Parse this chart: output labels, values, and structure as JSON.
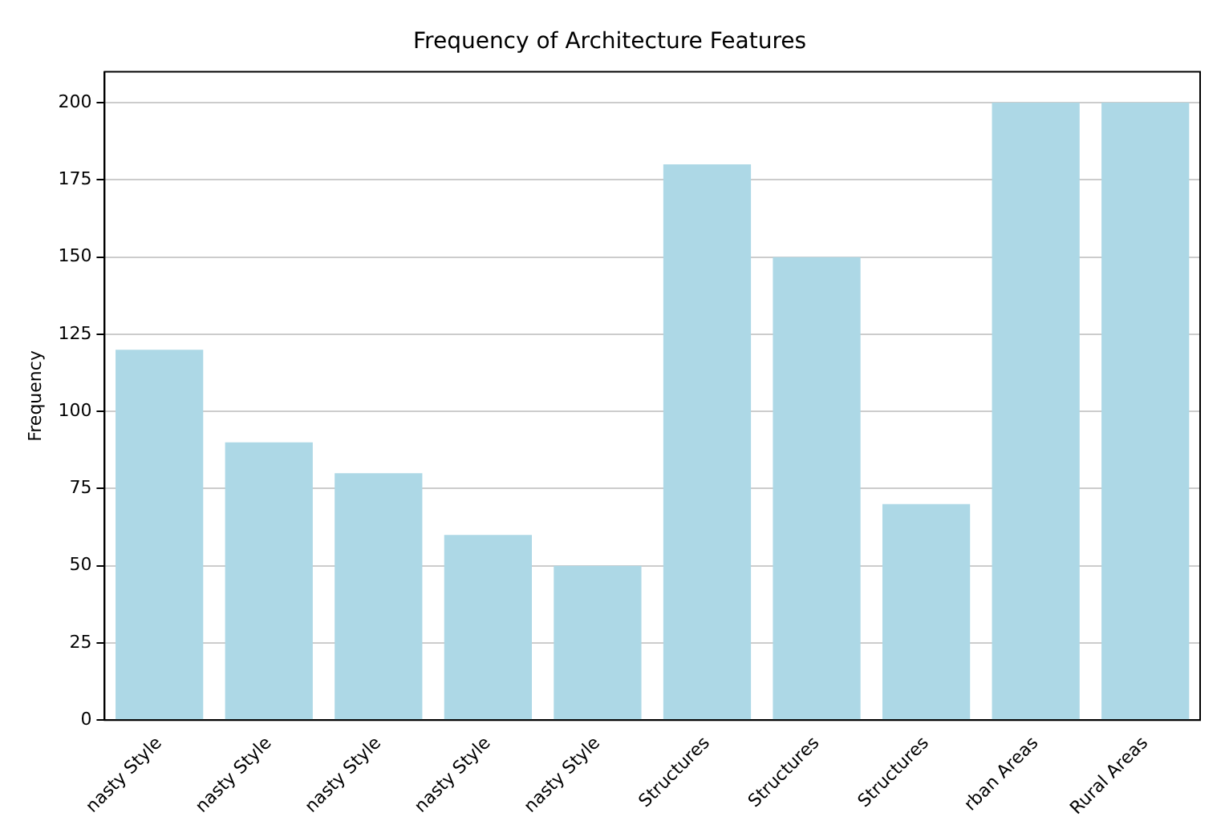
{
  "chart_data": {
    "type": "bar",
    "title": "Frequency of Architecture Features",
    "ylabel": "Frequency",
    "categories": [
      "nasty Style",
      "nasty Style",
      "nasty Style",
      "nasty Style",
      "nasty Style",
      "Structures",
      "Structures",
      "Structures",
      "rban Areas",
      "Rural Areas"
    ],
    "values": [
      120,
      90,
      80,
      60,
      50,
      180,
      150,
      70,
      200,
      200
    ],
    "color": "#add8e6",
    "ylim": [
      0,
      210
    ],
    "yticks": [
      0,
      25,
      50,
      75,
      100,
      125,
      150,
      175,
      200
    ],
    "grid": "y"
  }
}
